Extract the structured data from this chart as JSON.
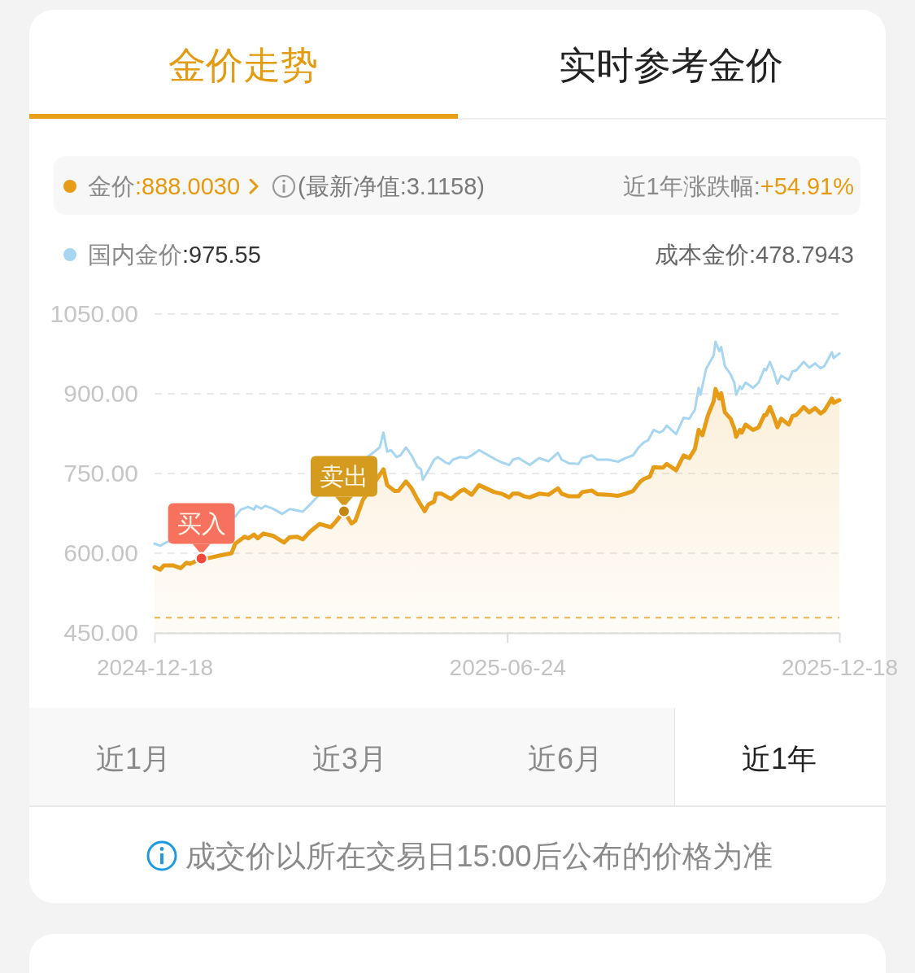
{
  "chart_data": {
    "type": "line",
    "title": "金价走势",
    "xlim": [
      "2024-12-18",
      "2025-12-18"
    ],
    "xticks": [
      "2024-12-18",
      "2025-06-24",
      "2025-12-18"
    ],
    "ylim": [
      450,
      1050
    ],
    "yticks": [
      {
        "value": 450,
        "label": "450.00"
      },
      {
        "value": 600,
        "label": "600.00"
      },
      {
        "value": 750,
        "label": "750.00"
      },
      {
        "value": 900,
        "label": "900.00"
      },
      {
        "value": 1050,
        "label": "1050.00"
      }
    ],
    "grid": "y",
    "legend": "top left",
    "series": [
      {
        "name": "金价",
        "type": "area",
        "color": "#e69c17",
        "x": [
          "2024-12-18",
          "2024-12-21",
          "2024-12-23",
          "2024-12-28",
          "2025-01-01",
          "2025-01-04",
          "2025-01-06",
          "2025-01-12",
          "2025-01-16",
          "2025-01-21",
          "2025-01-28",
          "2025-01-30",
          "2025-02-04",
          "2025-02-06",
          "2025-02-09",
          "2025-02-11",
          "2025-02-14",
          "2025-02-19",
          "2025-02-25",
          "2025-02-28",
          "2025-03-04",
          "2025-03-07",
          "2025-03-11",
          "2025-03-16",
          "2025-03-22",
          "2025-03-25",
          "2025-03-29",
          "2025-04-02",
          "2025-04-04",
          "2025-04-08",
          "2025-04-19",
          "2025-04-21",
          "2025-04-25",
          "2025-04-27",
          "2025-05-01",
          "2025-05-04",
          "2025-05-07",
          "2025-05-11",
          "2025-05-13",
          "2025-05-16",
          "2025-05-17",
          "2025-05-20",
          "2025-05-25",
          "2025-05-30",
          "2025-06-01",
          "2025-06-05",
          "2025-06-09",
          "2025-06-14",
          "2025-06-17",
          "2025-06-21",
          "2025-06-25",
          "2025-06-27",
          "2025-06-30",
          "2025-07-03",
          "2025-07-06",
          "2025-07-11",
          "2025-07-16",
          "2025-07-21",
          "2025-07-23",
          "2025-07-27",
          "2025-08-01",
          "2025-08-03",
          "2025-08-08",
          "2025-08-11",
          "2025-08-17",
          "2025-08-22",
          "2025-08-26",
          "2025-08-30",
          "2025-09-03",
          "2025-09-05",
          "2025-09-08",
          "2025-09-10",
          "2025-09-13",
          "2025-09-15",
          "2025-09-17",
          "2025-09-22",
          "2025-09-26",
          "2025-09-29",
          "2025-10-02",
          "2025-10-04",
          "2025-10-06",
          "2025-10-09",
          "2025-10-12",
          "2025-10-13",
          "2025-10-15",
          "2025-10-16",
          "2025-10-18",
          "2025-10-21",
          "2025-10-23",
          "2025-10-24",
          "2025-10-26",
          "2025-10-27",
          "2025-10-29",
          "2025-11-02",
          "2025-11-05",
          "2025-11-08",
          "2025-11-09",
          "2025-11-11",
          "2025-11-13",
          "2025-11-15",
          "2025-11-17",
          "2025-11-21",
          "2025-11-23",
          "2025-11-25",
          "2025-11-29",
          "2025-12-02",
          "2025-12-05",
          "2025-12-08",
          "2025-12-10",
          "2025-12-14",
          "2025-12-15",
          "2025-12-18"
        ],
        "values": [
          574,
          569,
          577,
          577,
          572,
          582,
          580,
          590,
          591,
          595,
          600,
          618,
          631,
          628,
          635,
          628,
          637,
          633,
          620,
          630,
          631,
          626,
          641,
          655,
          649,
          661,
          679,
          656,
          661,
          700,
          758,
          728,
          717,
          717,
          735,
          722,
          702,
          679,
          692,
          697,
          712,
          712,
          702,
          717,
          720,
          710,
          728,
          720,
          715,
          712,
          705,
          712,
          712,
          707,
          705,
          712,
          710,
          722,
          712,
          707,
          707,
          715,
          718,
          711,
          710,
          708,
          712,
          717,
          735,
          740,
          744,
          762,
          761,
          761,
          768,
          756,
          784,
          779,
          796,
          832,
          822,
          860,
          886,
          909,
          891,
          901,
          865,
          853,
          835,
          819,
          832,
          827,
          842,
          832,
          837,
          860,
          860,
          875,
          858,
          837,
          853,
          842,
          858,
          860,
          875,
          865,
          873,
          863,
          868,
          891,
          883,
          888
        ]
      },
      {
        "name": "国内金价",
        "type": "line",
        "color": "#a8d5f0",
        "x": [
          "2024-12-18",
          "2024-12-21",
          "2024-12-24",
          "2025-01-30",
          "2025-02-02",
          "2025-02-06",
          "2025-02-09",
          "2025-02-10",
          "2025-02-13",
          "2025-02-15",
          "2025-02-19",
          "2025-02-24",
          "2025-02-28",
          "2025-03-02",
          "2025-03-07",
          "2025-03-11",
          "2025-03-15",
          "2025-04-17",
          "2025-04-19",
          "2025-04-21",
          "2025-04-23",
          "2025-04-26",
          "2025-04-28",
          "2025-05-01",
          "2025-05-04",
          "2025-05-07",
          "2025-05-09",
          "2025-05-10",
          "2025-05-13",
          "2025-05-16",
          "2025-05-18",
          "2025-05-22",
          "2025-05-24",
          "2025-05-26",
          "2025-05-30",
          "2025-06-02",
          "2025-06-05",
          "2025-06-09",
          "2025-06-14",
          "2025-06-18",
          "2025-06-21",
          "2025-06-25",
          "2025-06-27",
          "2025-06-30",
          "2025-07-06",
          "2025-07-11",
          "2025-07-16",
          "2025-07-21",
          "2025-07-23",
          "2025-07-27",
          "2025-08-01",
          "2025-08-03",
          "2025-08-08",
          "2025-08-11",
          "2025-08-17",
          "2025-08-22",
          "2025-08-26",
          "2025-08-30",
          "2025-09-02",
          "2025-09-05",
          "2025-09-07",
          "2025-09-10",
          "2025-09-13",
          "2025-09-15",
          "2025-09-17",
          "2025-09-22",
          "2025-09-26",
          "2025-09-29",
          "2025-10-02",
          "2025-10-04",
          "2025-10-05",
          "2025-10-08",
          "2025-10-12",
          "2025-10-13",
          "2025-10-15",
          "2025-10-16",
          "2025-10-18",
          "2025-10-21",
          "2025-10-23",
          "2025-10-24",
          "2025-10-26",
          "2025-10-27",
          "2025-10-29",
          "2025-11-02",
          "2025-11-05",
          "2025-11-08",
          "2025-11-09",
          "2025-11-11",
          "2025-11-13",
          "2025-11-15",
          "2025-11-17",
          "2025-11-21",
          "2025-11-23",
          "2025-11-25",
          "2025-11-29",
          "2025-12-02",
          "2025-12-05",
          "2025-12-08",
          "2025-12-10",
          "2025-12-14",
          "2025-12-15",
          "2025-12-18"
        ],
        "values": [
          618,
          614,
          620,
          669,
          682,
          687,
          682,
          689,
          684,
          689,
          684,
          674,
          683,
          682,
          678,
          692,
          707,
          799,
          827,
          791,
          794,
          781,
          784,
          799,
          784,
          763,
          758,
          738,
          756,
          776,
          781,
          771,
          768,
          776,
          781,
          779,
          784,
          794,
          784,
          776,
          771,
          766,
          776,
          779,
          766,
          779,
          773,
          789,
          776,
          769,
          768,
          779,
          784,
          776,
          776,
          772,
          779,
          784,
          799,
          809,
          812,
          832,
          827,
          830,
          840,
          824,
          855,
          853,
          870,
          911,
          898,
          947,
          972,
          998,
          980,
          988,
          952,
          937,
          921,
          898,
          914,
          909,
          921,
          911,
          921,
          947,
          944,
          960,
          942,
          919,
          934,
          926,
          942,
          944,
          960,
          949,
          957,
          948,
          952,
          978,
          967,
          976
        ]
      }
    ],
    "ref_lines": [
      {
        "axis": "y",
        "value": 478.7943,
        "color": "#e8b64a",
        "line_style": "dashed"
      }
    ],
    "annotations": [
      {
        "text": "买入",
        "x": "2025-01-12",
        "y": 590
      },
      {
        "text": "卖出",
        "x": "2025-03-29",
        "y": 679
      },
      ":888.0030",
      "(最新净值:3.1158)",
      "近1年涨跌幅:",
      "+54.91%",
      ":975.55",
      "成本金价:478.7943",
      "实时参考金价",
      "近1月",
      "近3月",
      "近6月",
      "近1年",
      "成交价以所在交易日15:00后公布的价格为准"
    ]
  }
}
